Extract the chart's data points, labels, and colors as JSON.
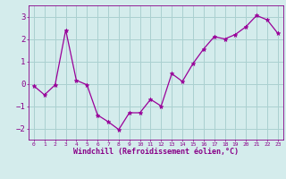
{
  "x": [
    0,
    1,
    2,
    3,
    4,
    5,
    6,
    7,
    8,
    9,
    10,
    11,
    12,
    13,
    14,
    15,
    16,
    17,
    18,
    19,
    20,
    21,
    22,
    23
  ],
  "y": [
    -0.1,
    -0.5,
    -0.05,
    2.4,
    0.15,
    -0.05,
    -1.4,
    -1.7,
    -2.05,
    -1.3,
    -1.3,
    -0.7,
    -1.0,
    0.45,
    0.1,
    0.9,
    1.55,
    2.1,
    2.0,
    2.2,
    2.55,
    3.05,
    2.85,
    2.25
  ],
  "line_color": "#990099",
  "marker": "*",
  "marker_size": 3.5,
  "bg_color": "#d4ecec",
  "grid_color": "#aad0d0",
  "xlabel": "Windchill (Refroidissement éolien,°C)",
  "xlabel_color": "#880088",
  "tick_color": "#880088",
  "ylim": [
    -2.5,
    3.5
  ],
  "xlim": [
    -0.5,
    23.5
  ],
  "yticks": [
    -2,
    -1,
    0,
    1,
    2,
    3
  ],
  "xticks": [
    0,
    1,
    2,
    3,
    4,
    5,
    6,
    7,
    8,
    9,
    10,
    11,
    12,
    13,
    14,
    15,
    16,
    17,
    18,
    19,
    20,
    21,
    22,
    23
  ],
  "figsize": [
    3.2,
    2.0
  ],
  "dpi": 100
}
